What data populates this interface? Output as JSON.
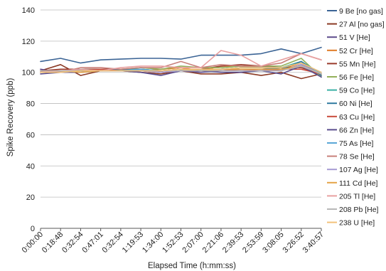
{
  "chart_data": {
    "type": "line",
    "title": "",
    "xlabel": "Elapsed Time (h:mm:ss)",
    "ylabel": "Spike Recovery (ppb)",
    "ylim": [
      0,
      140
    ],
    "yticks": [
      0,
      20,
      40,
      60,
      80,
      100,
      120,
      140
    ],
    "grid": true,
    "legend_position": "right",
    "categories": [
      "0:00:00",
      "0:18:48",
      "0:32:54",
      "0:47:01",
      "0:32:54",
      "1:19:53",
      "1:34:00",
      "1:52:53",
      "2:07:00",
      "2:21:06",
      "2:39:53",
      "2:53:59",
      "3:08:05",
      "3:26:52",
      "3:40:57"
    ],
    "series": [
      {
        "name": "9 Be [no gas]",
        "color": "#3b6495",
        "values": [
          107,
          109,
          106,
          108,
          108.5,
          109,
          109,
          108.5,
          111,
          111,
          111,
          112,
          115,
          112,
          116
        ]
      },
      {
        "name": "27 Al [no gas]",
        "color": "#8b3a24",
        "values": [
          101,
          105,
          98,
          101,
          101,
          100,
          99,
          101,
          99,
          99,
          100,
          98,
          100,
          96,
          99
        ]
      },
      {
        "name": "51 V [He]",
        "color": "#5d4c8c",
        "values": [
          102,
          100,
          100,
          101,
          101,
          101,
          100,
          101,
          100,
          101,
          102,
          102,
          101,
          105,
          97
        ]
      },
      {
        "name": "52 Cr [He]",
        "color": "#e07b24",
        "values": [
          100,
          101,
          101,
          102,
          102,
          101,
          102,
          103,
          101,
          104,
          104,
          103,
          102,
          106,
          98
        ]
      },
      {
        "name": "55 Mn [He]",
        "color": "#9a3a2a",
        "values": [
          101,
          102,
          102,
          102,
          102,
          102,
          101,
          102,
          102,
          104,
          105,
          104,
          103,
          103,
          99
        ]
      },
      {
        "name": "56 Fe [He]",
        "color": "#93b05a",
        "values": [
          100,
          100,
          102,
          101,
          102,
          103,
          102,
          104,
          103,
          103,
          104,
          104,
          104,
          109,
          97
        ]
      },
      {
        "name": "59 Co [He]",
        "color": "#3ab0a5",
        "values": [
          101,
          100,
          102,
          101,
          102,
          102,
          101,
          102,
          102,
          102,
          103,
          103,
          103,
          107,
          99
        ]
      },
      {
        "name": "60 Ni [He]",
        "color": "#2e7aa0",
        "values": [
          100,
          101,
          101,
          101,
          102,
          101,
          101,
          102,
          101,
          102,
          103,
          103,
          102,
          107,
          98
        ]
      },
      {
        "name": "63 Cu [He]",
        "color": "#c84a3a",
        "values": [
          101,
          101,
          101,
          102,
          101,
          101,
          100,
          101,
          101,
          101,
          102,
          101,
          102,
          102,
          99
        ]
      },
      {
        "name": "66 Zn [He]",
        "color": "#5a4e8e",
        "values": [
          99,
          100,
          101,
          101,
          101,
          100,
          98,
          101,
          101,
          100,
          100,
          101,
          99,
          104,
          97
        ]
      },
      {
        "name": "75 As [He]",
        "color": "#5aa7d6",
        "values": [
          100,
          101,
          101,
          101,
          101,
          102,
          101,
          102,
          102,
          102,
          103,
          103,
          103,
          106,
          100
        ]
      },
      {
        "name": "78 Se [He]",
        "color": "#c8807a",
        "values": [
          101,
          100,
          103,
          103,
          102,
          103,
          103,
          107,
          103,
          105,
          104,
          104,
          106,
          112,
          108
        ]
      },
      {
        "name": "107 Ag [He]",
        "color": "#a59ad2",
        "values": [
          100,
          100,
          101,
          101,
          101,
          101,
          100,
          101,
          101,
          101,
          101,
          101,
          101,
          105,
          99
        ]
      },
      {
        "name": "111 Cd [He]",
        "color": "#e4a446",
        "values": [
          100,
          101,
          100,
          101,
          101,
          101,
          101,
          102,
          101,
          102,
          102,
          102,
          102,
          104,
          99
        ]
      },
      {
        "name": "205 Tl [He]",
        "color": "#e8a0a0",
        "values": [
          100,
          101,
          102,
          101,
          103,
          104,
          104,
          103,
          103,
          114,
          111,
          104,
          108,
          112,
          108
        ]
      },
      {
        "name": "208 Pb [He]",
        "color": "#b8b8b8",
        "values": [
          101,
          101,
          101,
          101,
          101,
          101,
          101,
          101,
          101,
          101,
          101,
          101,
          101,
          104,
          99
        ]
      },
      {
        "name": "238 U [He]",
        "color": "#f2c27a",
        "values": [
          100,
          100,
          101,
          101,
          101,
          101,
          101,
          102,
          102,
          102,
          103,
          103,
          103,
          106,
          100
        ]
      }
    ]
  }
}
